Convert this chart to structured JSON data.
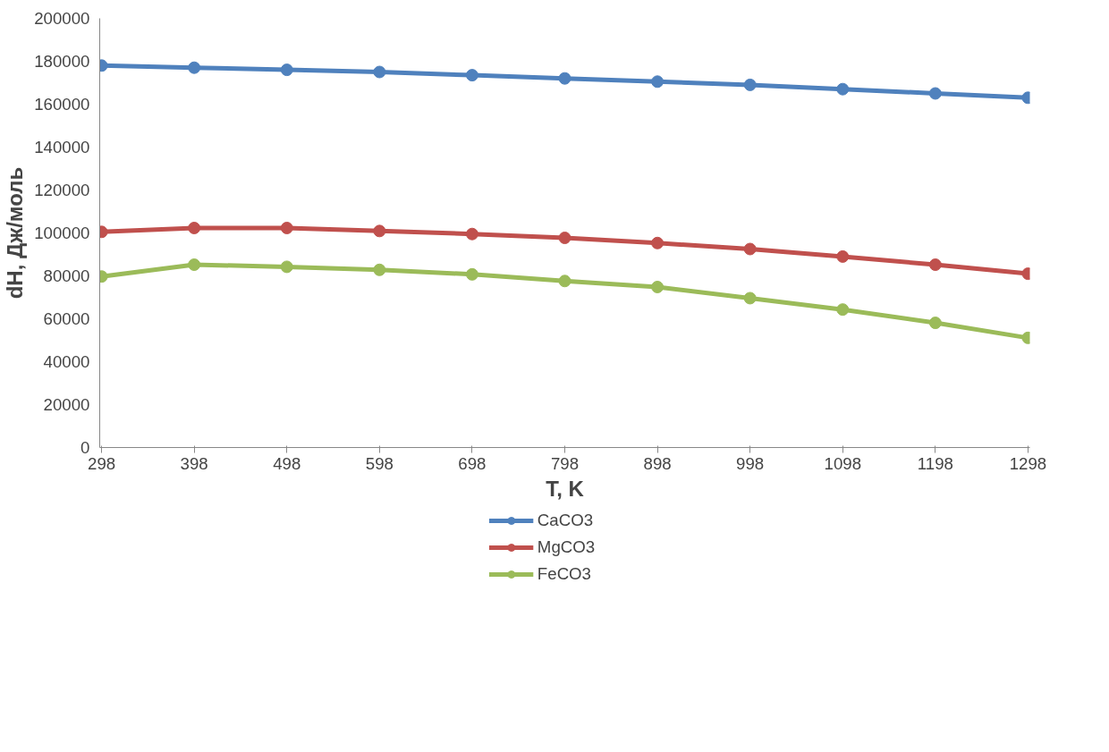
{
  "chart_data": {
    "type": "line",
    "xlabel": "T, K",
    "ylabel": "dH, Дж/моль",
    "categories": [
      "298",
      "398",
      "498",
      "598",
      "698",
      "798",
      "898",
      "998",
      "1098",
      "1198",
      "1298"
    ],
    "series": [
      {
        "name": "CaCO3",
        "color": "#4f81bd",
        "values": [
          178000,
          177000,
          176000,
          175000,
          173500,
          172000,
          170500,
          169000,
          167000,
          165000,
          163000
        ]
      },
      {
        "name": "MgCO3",
        "color": "#c0504d",
        "values": [
          100500,
          102300,
          102300,
          100900,
          99500,
          97700,
          95300,
          92500,
          89000,
          85200,
          81000
        ]
      },
      {
        "name": "FeCO3",
        "color": "#9bbb59",
        "values": [
          79700,
          85200,
          84200,
          82800,
          80700,
          77600,
          74800,
          69600,
          64300,
          58100,
          51100
        ]
      }
    ],
    "ylim": [
      0,
      200000
    ],
    "yticks": [
      0,
      20000,
      40000,
      60000,
      80000,
      100000,
      120000,
      140000,
      160000,
      180000,
      200000
    ],
    "grid": false,
    "legend": "bottom",
    "marker": "circle",
    "line_style": "solid"
  }
}
